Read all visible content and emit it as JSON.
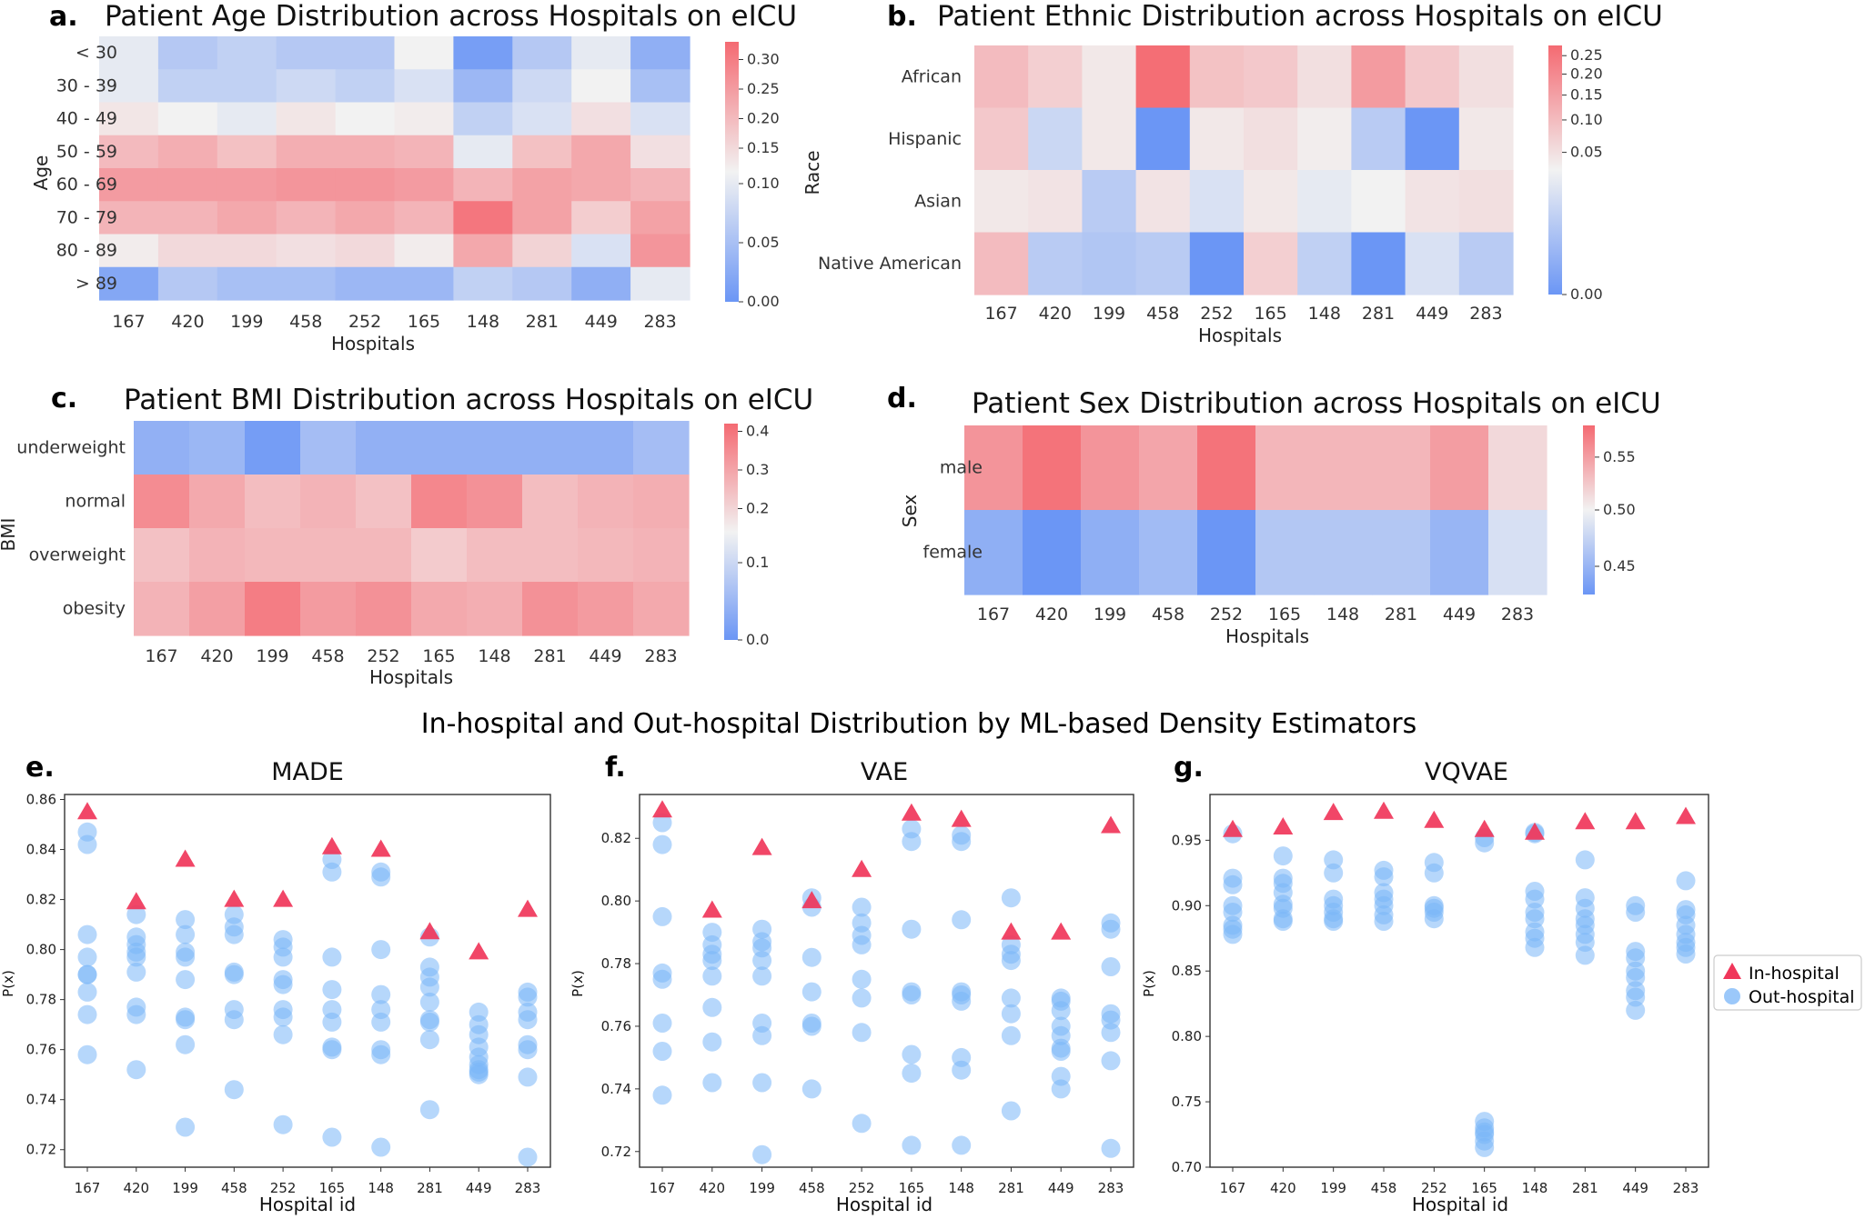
{
  "colors": {
    "low": "#6b96f5",
    "mid": "#f2f2f2",
    "high": "#f46a72",
    "in_hospital": "#f0365a",
    "out_hospital": "#7ab6f8"
  },
  "legend": {
    "in_hospital": "In-hospital",
    "out_hospital": "Out-hospital"
  },
  "section_title": "In-hospital and Out-hospital Distribution by ML-based Density Estimators",
  "chart_data": [
    {
      "id": "a",
      "letter": "a.",
      "type": "heatmap",
      "title": "Patient Age Distribution across Hospitals on eICU",
      "xlabel": "Hospitals",
      "ylabel": "Age",
      "x": [
        "167",
        "420",
        "199",
        "458",
        "252",
        "165",
        "148",
        "281",
        "449",
        "283"
      ],
      "y": [
        "< 30",
        "30 - 39",
        "40 - 49",
        "50 - 59",
        "60 - 69",
        "70 - 79",
        "80 - 89",
        "> 89"
      ],
      "vmin": 0,
      "vmax": 0.33,
      "center": 0.11,
      "colorbar_ticks": [
        "0.00",
        "0.05",
        "0.10",
        "0.15",
        "0.20",
        "0.25",
        "0.30"
      ],
      "colorbar_values": [
        0,
        0.05,
        0.1,
        0.15,
        0.2,
        0.25,
        0.3
      ],
      "values": [
        [
          0.1,
          0.06,
          0.07,
          0.06,
          0.06,
          0.11,
          0.01,
          0.06,
          0.1,
          0.03
        ],
        [
          0.1,
          0.07,
          0.07,
          0.08,
          0.07,
          0.09,
          0.04,
          0.08,
          0.11,
          0.05
        ],
        [
          0.13,
          0.11,
          0.1,
          0.13,
          0.11,
          0.12,
          0.07,
          0.09,
          0.14,
          0.09
        ],
        [
          0.2,
          0.22,
          0.19,
          0.22,
          0.22,
          0.21,
          0.1,
          0.19,
          0.23,
          0.14
        ],
        [
          0.25,
          0.25,
          0.25,
          0.26,
          0.26,
          0.25,
          0.21,
          0.24,
          0.23,
          0.21
        ],
        [
          0.21,
          0.21,
          0.23,
          0.21,
          0.23,
          0.21,
          0.31,
          0.24,
          0.17,
          0.24
        ],
        [
          0.12,
          0.15,
          0.15,
          0.14,
          0.15,
          0.12,
          0.23,
          0.16,
          0.09,
          0.26
        ],
        [
          0.02,
          0.06,
          0.05,
          0.05,
          0.04,
          0.04,
          0.07,
          0.06,
          0.03,
          0.1
        ]
      ]
    },
    {
      "id": "b",
      "letter": "b.",
      "type": "heatmap",
      "title": "Patient Ethnic Distribution across Hospitals on eICU",
      "xlabel": "Hospitals",
      "ylabel": "Race",
      "x": [
        "167",
        "420",
        "199",
        "458",
        "252",
        "165",
        "148",
        "281",
        "449",
        "283"
      ],
      "y": [
        "African",
        "Hispanic",
        "Asian",
        "Native American"
      ],
      "scale": "sqrt",
      "vmin": 0,
      "vmax": 0.28,
      "center": 0.03,
      "colorbar_ticks": [
        "0.00",
        "0.05",
        "0.10",
        "0.15",
        "0.20",
        "0.25"
      ],
      "colorbar_values": [
        0,
        0.05,
        0.1,
        0.15,
        0.2,
        0.25
      ],
      "values": [
        [
          0.1,
          0.07,
          0.04,
          0.27,
          0.09,
          0.08,
          0.05,
          0.16,
          0.08,
          0.05
        ],
        [
          0.08,
          0.015,
          0.04,
          0.0,
          0.04,
          0.05,
          0.035,
          0.01,
          0.0,
          0.04
        ],
        [
          0.04,
          0.045,
          0.01,
          0.045,
          0.02,
          0.04,
          0.025,
          0.03,
          0.045,
          0.05
        ],
        [
          0.1,
          0.01,
          0.008,
          0.01,
          0.0,
          0.07,
          0.012,
          0.0,
          0.02,
          0.01
        ]
      ]
    },
    {
      "id": "c",
      "letter": "c.",
      "type": "heatmap",
      "title": "Patient BMI Distribution across Hospitals on eICU",
      "xlabel": "Hospitals",
      "ylabel": "BMI",
      "x": [
        "167",
        "420",
        "199",
        "458",
        "252",
        "165",
        "148",
        "281",
        "449",
        "283"
      ],
      "y": [
        "underweight",
        "normal",
        "overweight",
        "obesity"
      ],
      "vmin": 0,
      "vmax": 0.42,
      "center": 0.14,
      "colorbar_ticks": [
        "0.0",
        "0.1",
        "0.2",
        "0.3",
        "0.4"
      ],
      "colorbar_values": [
        0,
        0.1,
        0.2,
        0.3,
        0.4
      ],
      "values": [
        [
          0.04,
          0.05,
          0.01,
          0.06,
          0.04,
          0.04,
          0.04,
          0.04,
          0.04,
          0.06
        ],
        [
          0.35,
          0.29,
          0.25,
          0.27,
          0.24,
          0.36,
          0.34,
          0.25,
          0.27,
          0.28
        ],
        [
          0.24,
          0.27,
          0.26,
          0.26,
          0.26,
          0.22,
          0.25,
          0.25,
          0.26,
          0.27
        ],
        [
          0.27,
          0.31,
          0.38,
          0.32,
          0.34,
          0.29,
          0.28,
          0.34,
          0.32,
          0.29
        ]
      ]
    },
    {
      "id": "d",
      "letter": "d.",
      "type": "heatmap",
      "title": "Patient Sex Distribution across Hospitals on eICU",
      "xlabel": "Hospitals",
      "ylabel": "Sex",
      "x": [
        "167",
        "420",
        "199",
        "458",
        "252",
        "165",
        "148",
        "281",
        "449",
        "283"
      ],
      "y": [
        "male",
        "female"
      ],
      "vmin": 0.425,
      "vmax": 0.58,
      "center": 0.5,
      "colorbar_ticks": [
        "0.45",
        "0.50",
        "0.55"
      ],
      "colorbar_values": [
        0.45,
        0.5,
        0.55
      ],
      "values": [
        [
          0.555,
          0.575,
          0.555,
          0.545,
          0.575,
          0.535,
          0.535,
          0.535,
          0.55,
          0.515
        ],
        [
          0.445,
          0.425,
          0.445,
          0.455,
          0.425,
          0.465,
          0.465,
          0.465,
          0.45,
          0.485
        ]
      ]
    },
    {
      "id": "e",
      "letter": "e.",
      "type": "scatter",
      "title": "MADE",
      "xlabel": "Hospital id",
      "ylabel": "P(x)",
      "categories": [
        "167",
        "420",
        "199",
        "458",
        "252",
        "165",
        "148",
        "281",
        "449",
        "283"
      ],
      "ylim": [
        0.713,
        0.862
      ],
      "yticks": [
        0.72,
        0.74,
        0.76,
        0.78,
        0.8,
        0.82,
        0.84,
        0.86
      ],
      "ytick_labels": [
        "0.72",
        "0.74",
        "0.76",
        "0.78",
        "0.80",
        "0.82",
        "0.84",
        "0.86"
      ],
      "in_hospital": [
        0.855,
        0.819,
        0.836,
        0.82,
        0.82,
        0.841,
        0.84,
        0.807,
        0.799,
        0.816
      ],
      "out_hospital": [
        [
          0.847,
          0.842,
          0.806,
          0.797,
          0.79,
          0.79,
          0.783,
          0.774,
          0.758
        ],
        [
          0.814,
          0.805,
          0.802,
          0.799,
          0.797,
          0.791,
          0.777,
          0.774,
          0.752
        ],
        [
          0.812,
          0.806,
          0.799,
          0.797,
          0.788,
          0.773,
          0.772,
          0.762,
          0.729
        ],
        [
          0.814,
          0.809,
          0.806,
          0.791,
          0.79,
          0.776,
          0.772,
          0.744
        ],
        [
          0.804,
          0.801,
          0.797,
          0.788,
          0.786,
          0.776,
          0.773,
          0.766,
          0.73
        ],
        [
          0.836,
          0.831,
          0.797,
          0.784,
          0.776,
          0.771,
          0.761,
          0.76,
          0.725
        ],
        [
          0.831,
          0.829,
          0.8,
          0.782,
          0.776,
          0.771,
          0.76,
          0.758,
          0.721
        ],
        [
          0.805,
          0.793,
          0.789,
          0.785,
          0.779,
          0.772,
          0.771,
          0.764,
          0.736
        ],
        [
          0.775,
          0.77,
          0.766,
          0.761,
          0.757,
          0.754,
          0.752,
          0.751,
          0.75
        ],
        [
          0.783,
          0.781,
          0.775,
          0.772,
          0.762,
          0.76,
          0.749,
          0.717
        ]
      ]
    },
    {
      "id": "f",
      "letter": "f.",
      "type": "scatter",
      "title": "VAE",
      "xlabel": "Hospital id",
      "ylabel": "P(x)",
      "categories": [
        "167",
        "420",
        "199",
        "458",
        "252",
        "165",
        "148",
        "281",
        "449",
        "283"
      ],
      "ylim": [
        0.715,
        0.834
      ],
      "yticks": [
        0.72,
        0.74,
        0.76,
        0.78,
        0.8,
        0.82
      ],
      "ytick_labels": [
        "0.72",
        "0.74",
        "0.76",
        "0.78",
        "0.80",
        "0.82"
      ],
      "in_hospital": [
        0.829,
        0.797,
        0.817,
        0.8,
        0.81,
        0.828,
        0.826,
        0.79,
        0.79,
        0.824
      ],
      "out_hospital": [
        [
          0.825,
          0.818,
          0.795,
          0.777,
          0.775,
          0.761,
          0.752,
          0.738
        ],
        [
          0.79,
          0.786,
          0.783,
          0.781,
          0.776,
          0.766,
          0.755,
          0.742
        ],
        [
          0.791,
          0.787,
          0.785,
          0.781,
          0.776,
          0.761,
          0.757,
          0.742,
          0.719
        ],
        [
          0.801,
          0.798,
          0.782,
          0.771,
          0.761,
          0.76,
          0.74
        ],
        [
          0.798,
          0.793,
          0.789,
          0.786,
          0.775,
          0.769,
          0.758,
          0.729
        ],
        [
          0.823,
          0.819,
          0.791,
          0.771,
          0.77,
          0.751,
          0.745,
          0.722
        ],
        [
          0.821,
          0.819,
          0.794,
          0.771,
          0.77,
          0.768,
          0.75,
          0.746,
          0.722
        ],
        [
          0.801,
          0.786,
          0.783,
          0.781,
          0.769,
          0.764,
          0.757,
          0.733
        ],
        [
          0.769,
          0.768,
          0.765,
          0.76,
          0.757,
          0.753,
          0.752,
          0.744,
          0.74
        ],
        [
          0.793,
          0.791,
          0.779,
          0.764,
          0.762,
          0.758,
          0.749,
          0.721
        ]
      ]
    },
    {
      "id": "g",
      "letter": "g.",
      "type": "scatter",
      "title": "VQVAE",
      "xlabel": "Hospital id",
      "ylabel": "P(x)",
      "categories": [
        "167",
        "420",
        "199",
        "458",
        "252",
        "165",
        "148",
        "281",
        "449",
        "283"
      ],
      "ylim": [
        0.7,
        0.985
      ],
      "yticks": [
        0.7,
        0.75,
        0.8,
        0.85,
        0.9,
        0.95
      ],
      "ytick_labels": [
        "0.70",
        "0.75",
        "0.80",
        "0.85",
        "0.90",
        "0.95"
      ],
      "in_hospital": [
        0.958,
        0.96,
        0.971,
        0.972,
        0.965,
        0.958,
        0.956,
        0.964,
        0.964,
        0.968
      ],
      "out_hospital": [
        [
          0.955,
          0.921,
          0.916,
          0.9,
          0.895,
          0.885,
          0.882,
          0.878
        ],
        [
          0.938,
          0.921,
          0.917,
          0.91,
          0.901,
          0.898,
          0.89,
          0.888
        ],
        [
          0.935,
          0.925,
          0.905,
          0.9,
          0.895,
          0.89,
          0.888
        ],
        [
          0.927,
          0.922,
          0.91,
          0.905,
          0.9,
          0.893,
          0.888
        ],
        [
          0.933,
          0.925,
          0.9,
          0.898,
          0.895,
          0.89
        ],
        [
          0.952,
          0.948,
          0.735,
          0.73,
          0.727,
          0.725,
          0.72,
          0.715
        ],
        [
          0.956,
          0.955,
          0.911,
          0.905,
          0.895,
          0.89,
          0.88,
          0.875,
          0.868
        ],
        [
          0.935,
          0.906,
          0.898,
          0.89,
          0.885,
          0.878,
          0.872,
          0.862
        ],
        [
          0.9,
          0.895,
          0.865,
          0.86,
          0.85,
          0.845,
          0.835,
          0.83,
          0.82
        ],
        [
          0.919,
          0.897,
          0.893,
          0.885,
          0.878,
          0.872,
          0.868,
          0.863
        ]
      ]
    }
  ]
}
